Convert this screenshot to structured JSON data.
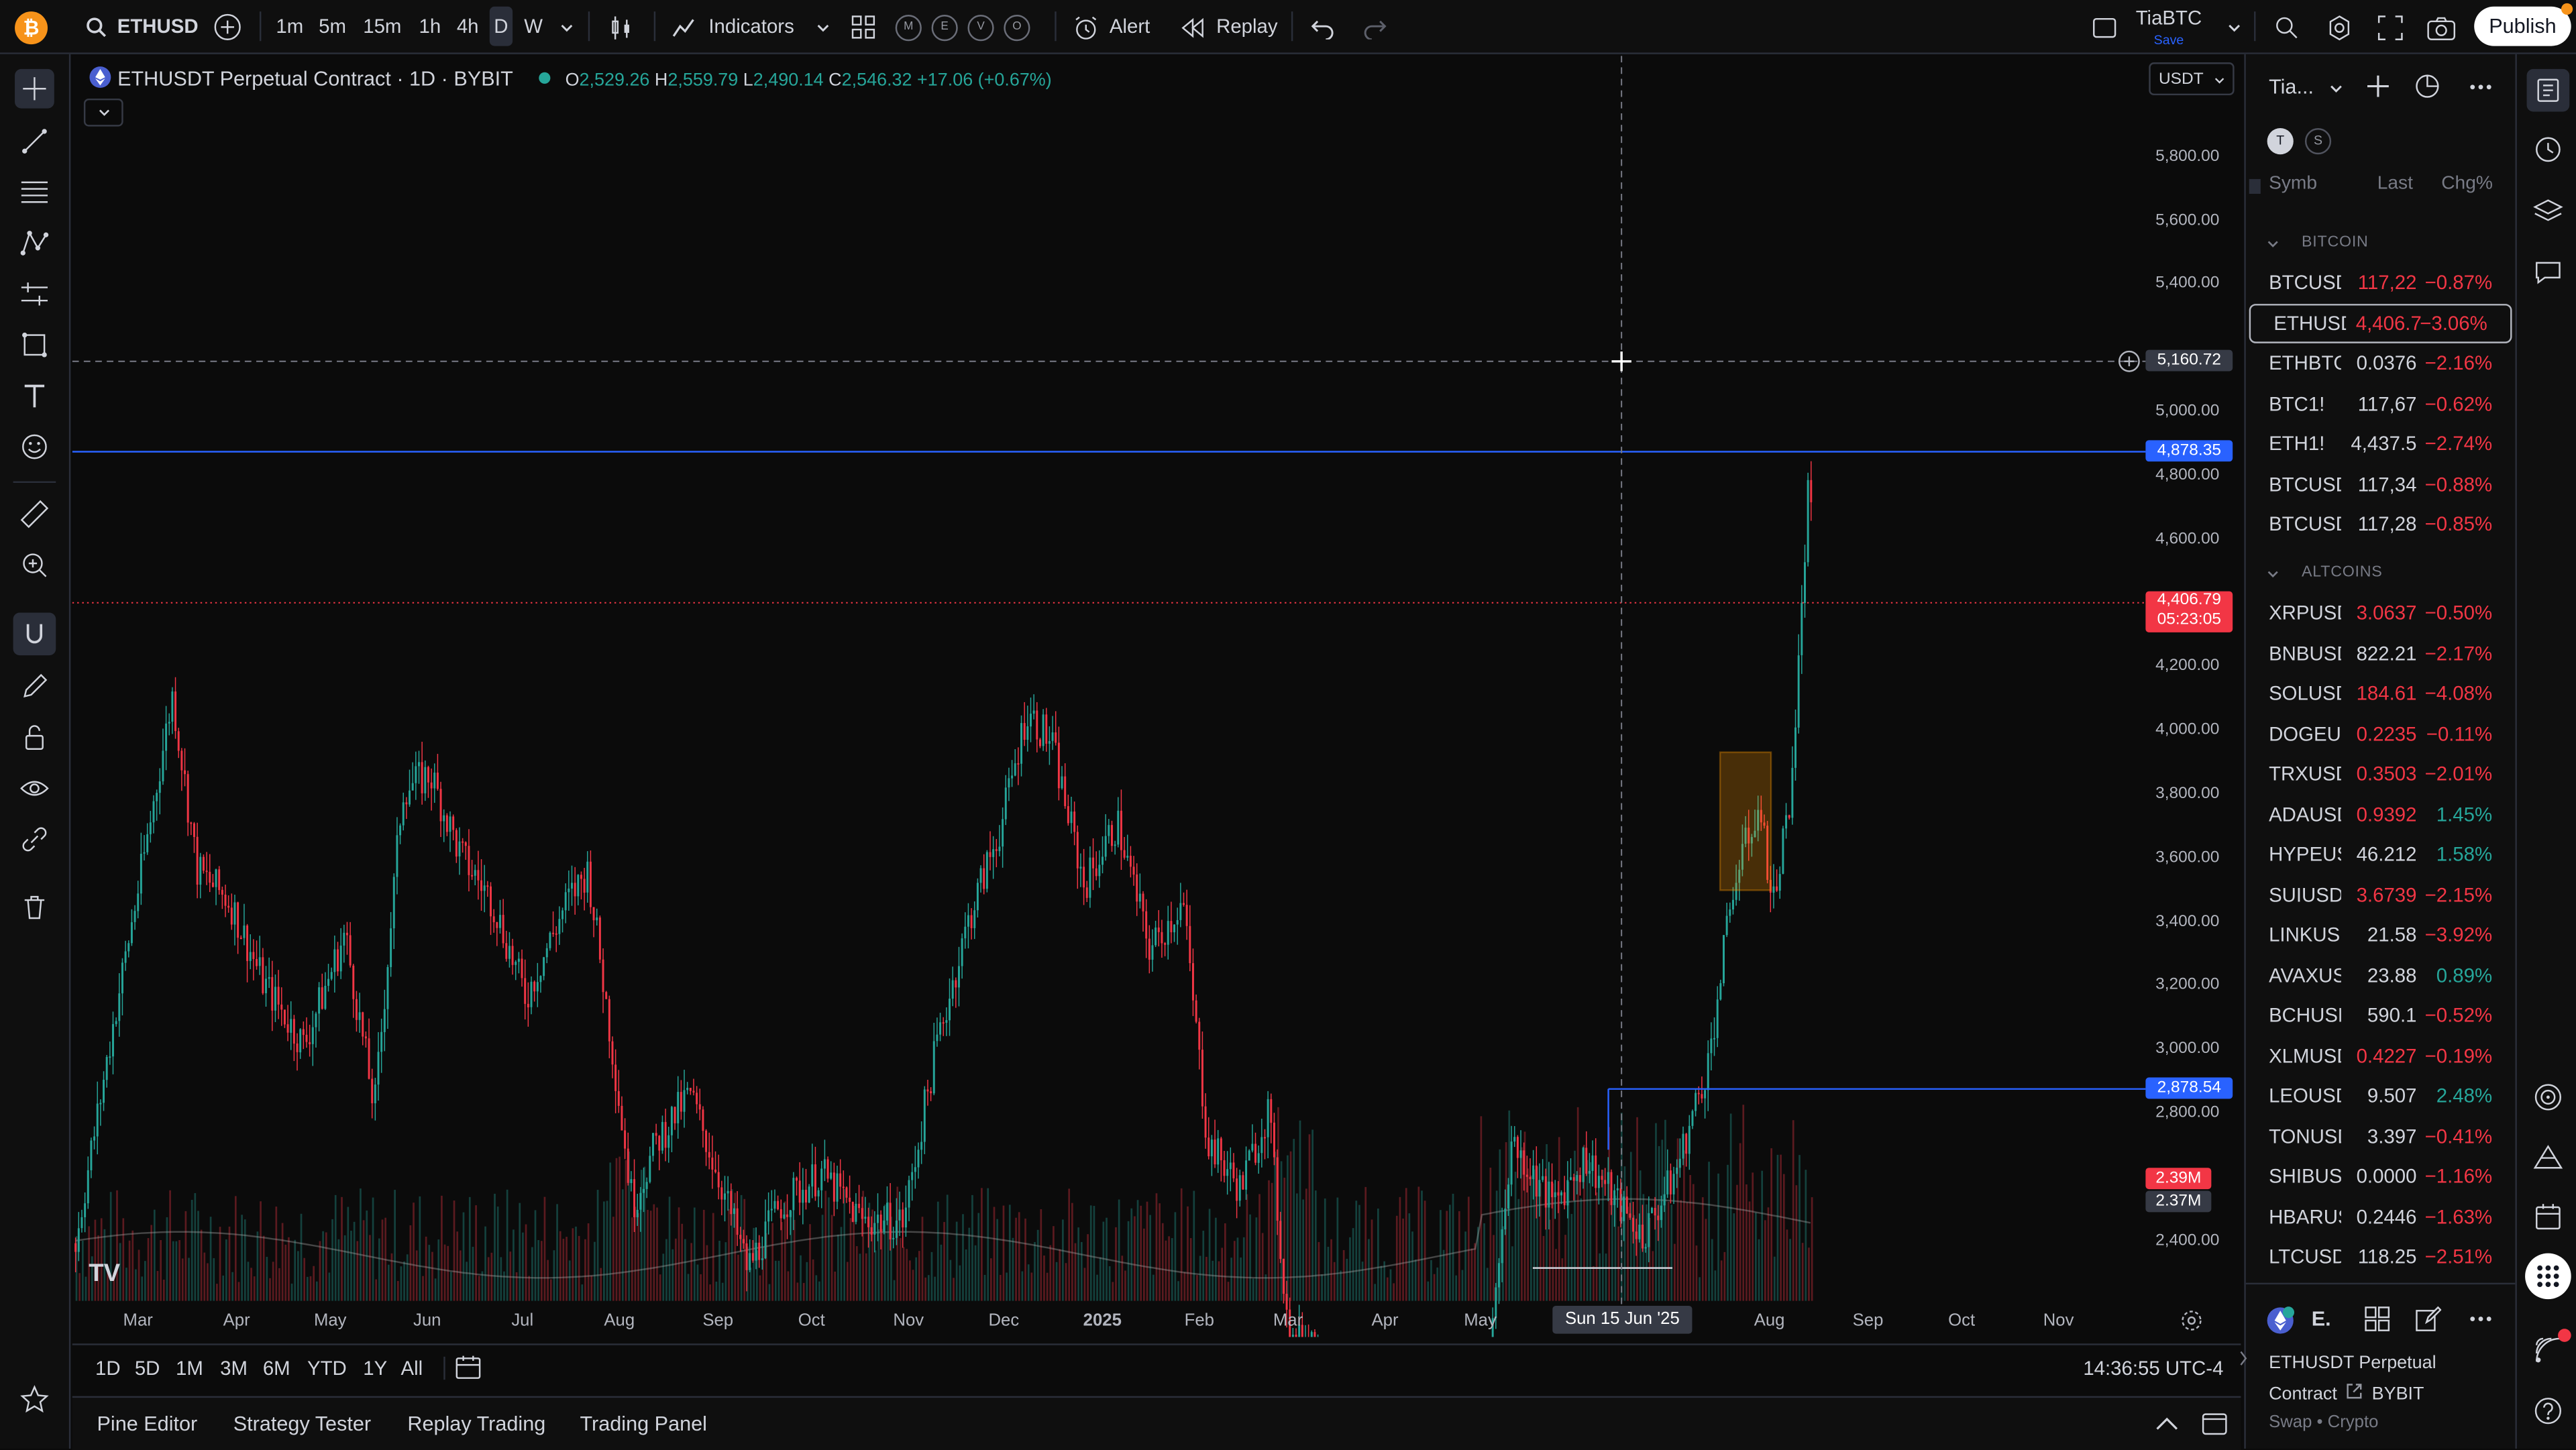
{
  "topbar": {
    "symbol": "ETHUSD",
    "intervals": [
      "1m",
      "5m",
      "15m",
      "1h",
      "4h",
      "D",
      "W"
    ],
    "indicators": "Indicators",
    "templates": [
      "M",
      "E",
      "V",
      "O"
    ],
    "alert": "Alert",
    "replay": "Replay",
    "account": "TiaBTC",
    "account_sub": "Save",
    "publish": "Publish"
  },
  "legend": {
    "title": "ETHUSDT Perpetual Contract · 1D · BYBIT",
    "o_label": "O",
    "o": "2,529.26",
    "h_label": "H",
    "h": "2,559.79",
    "l_label": "L",
    "l": "2,490.14",
    "c_label": "C",
    "c": "2,546.32",
    "change": "+17.06 (+0.67%)"
  },
  "currency": "USDT",
  "price_axis": [
    "5,800.00",
    "5,600.00",
    "5,400.00",
    "5,000.00",
    "4,800.00",
    "4,600.00",
    "4,200.00",
    "4,000.00",
    "3,800.00",
    "3,600.00",
    "3,400.00",
    "3,200.00",
    "3,000.00",
    "2,800.00",
    "2,400.00"
  ],
  "badges": {
    "crosshair": "5,160.72",
    "line_upper": "4,878.35",
    "last_price": "4,406.79",
    "countdown": "05:23:05",
    "line_lower": "2,878.54",
    "vol1": "2.39M",
    "vol2": "2.37M"
  },
  "time_axis": [
    "Mar",
    "Apr",
    "May",
    "Jun",
    "Jul",
    "Aug",
    "Sep",
    "Oct",
    "Nov",
    "Dec",
    "2025",
    "Feb",
    "Mar",
    "Apr",
    "May",
    "Aug",
    "Sep",
    "Oct",
    "Nov"
  ],
  "crosshair_date": "Sun 15 Jun '25",
  "ranges": [
    "1D",
    "5D",
    "1M",
    "3M",
    "6M",
    "YTD",
    "1Y",
    "All"
  ],
  "clock": "14:36:55 UTC-4",
  "bottom_tabs": [
    "Pine Editor",
    "Strategy Tester",
    "Replay Trading",
    "Trading Panel"
  ],
  "watchlist": {
    "name": "Tia...",
    "tags": [
      "T",
      "S"
    ],
    "headers": {
      "symbol": "Symb",
      "last": "Last",
      "chg": "Chg%"
    },
    "sections": [
      "BITCOIN",
      "ALTCOINS"
    ],
    "bitcoin": [
      {
        "s": "BTCUSD",
        "l": "117,22",
        "c": "−0.87%",
        "up": false,
        "lc": "red"
      },
      {
        "s": "ETHUSD",
        "l": "4,406.7",
        "c": "−3.06%",
        "up": false,
        "lc": "red"
      },
      {
        "s": "ETHBTC",
        "l": "0.0376",
        "c": "−2.16%",
        "up": false,
        "lc": "white"
      },
      {
        "s": "BTC1!",
        "l": "117,67",
        "c": "−0.62%",
        "up": false,
        "lc": "white"
      },
      {
        "s": "ETH1!",
        "l": "4,437.5",
        "c": "−2.74%",
        "up": false,
        "lc": "white"
      },
      {
        "s": "BTCUSD",
        "l": "117,34",
        "c": "−0.88%",
        "up": false,
        "lc": "white"
      },
      {
        "s": "BTCUSD",
        "l": "117,28",
        "c": "−0.85%",
        "up": false,
        "lc": "white"
      }
    ],
    "altcoins": [
      {
        "s": "XRPUSD",
        "l": "3.0637",
        "c": "−0.50%",
        "up": false,
        "lc": "red"
      },
      {
        "s": "BNBUSD",
        "l": "822.21",
        "c": "−2.17%",
        "up": false,
        "lc": "white"
      },
      {
        "s": "SOLUSD",
        "l": "184.61",
        "c": "−4.08%",
        "up": false,
        "lc": "red"
      },
      {
        "s": "DOGEUS",
        "l": "0.2235",
        "c": "−0.11%",
        "up": false,
        "lc": "red"
      },
      {
        "s": "TRXUSD",
        "l": "0.3503",
        "c": "−2.01%",
        "up": false,
        "lc": "red"
      },
      {
        "s": "ADAUSD",
        "l": "0.9392",
        "c": "1.45%",
        "up": true,
        "lc": "red"
      },
      {
        "s": "HYPEUS",
        "l": "46.212",
        "c": "1.58%",
        "up": true,
        "lc": "white"
      },
      {
        "s": "SUIUSD",
        "l": "3.6739",
        "c": "−2.15%",
        "up": false,
        "lc": "red"
      },
      {
        "s": "LINKUSD",
        "l": "21.58",
        "c": "−3.92%",
        "up": false,
        "lc": "white"
      },
      {
        "s": "AVAXUS",
        "l": "23.88",
        "c": "0.89%",
        "up": true,
        "lc": "white"
      },
      {
        "s": "BCHUSD",
        "l": "590.1",
        "c": "−0.52%",
        "up": false,
        "lc": "white"
      },
      {
        "s": "XLMUSD",
        "l": "0.4227",
        "c": "−0.19%",
        "up": false,
        "lc": "red"
      },
      {
        "s": "LEOUSD",
        "l": "9.507",
        "c": "2.48%",
        "up": true,
        "lc": "white"
      },
      {
        "s": "TONUSD",
        "l": "3.397",
        "c": "−0.41%",
        "up": false,
        "lc": "white"
      },
      {
        "s": "SHIBUS",
        "l": "0.0000",
        "c": "−1.16%",
        "up": false,
        "lc": "white"
      },
      {
        "s": "HBARUS",
        "l": "0.2446",
        "c": "−1.63%",
        "up": false,
        "lc": "white"
      },
      {
        "s": "LTCUSD",
        "l": "118.25",
        "c": "−2.51%",
        "up": false,
        "lc": "white"
      }
    ]
  },
  "details": {
    "header": "E.",
    "name_line1": "ETHUSDT Perpetual",
    "name_line2": "Contract",
    "exchange": "BYBIT",
    "type": "Swap • Crypto"
  },
  "colors": {
    "green": "#26a69a",
    "red": "#f23645",
    "blue": "#2962ff",
    "accent": "#2962ff"
  }
}
